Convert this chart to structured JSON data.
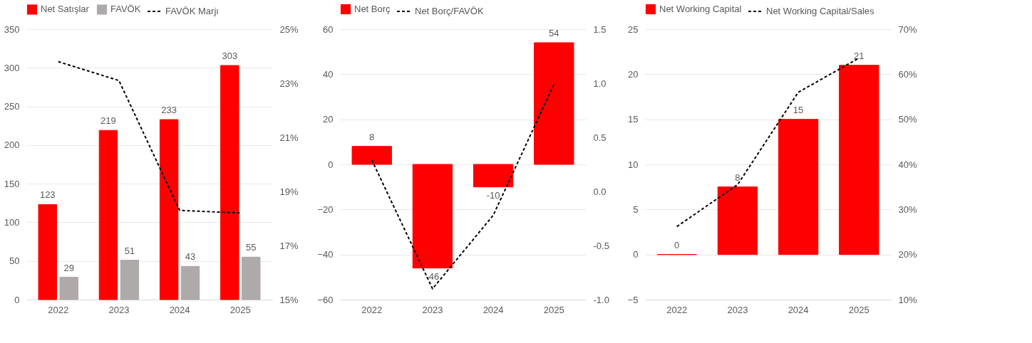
{
  "chart_data": [
    {
      "type": "bar",
      "categories": [
        "2022",
        "2023",
        "2024",
        "2025"
      ],
      "series": [
        {
          "name": "Net Satışlar",
          "color": "#ff0000",
          "values": [
            123,
            219,
            233,
            303
          ],
          "value_labels": [
            "123",
            "219",
            "233",
            "303"
          ]
        },
        {
          "name": "FAVÖK",
          "color": "#aeaaaa",
          "values": [
            29,
            51,
            43,
            55
          ],
          "value_labels": [
            "29",
            "51",
            "43",
            "55"
          ]
        },
        {
          "name": "FAVÖK Marjı",
          "color": "#000000",
          "type": "line",
          "axis": "y2",
          "line_style": "dashed",
          "values": [
            23.8,
            23.1,
            18.3,
            18.2
          ]
        }
      ],
      "ylim": [
        0,
        350
      ],
      "yticks": [
        0,
        50,
        100,
        150,
        200,
        250,
        300,
        350
      ],
      "y2lim": [
        15,
        25
      ],
      "y2ticks": [
        {
          "value": 15,
          "label": "15%"
        },
        {
          "value": 17,
          "label": "17%"
        },
        {
          "value": 19,
          "label": "19%"
        },
        {
          "value": 21,
          "label": "21%"
        },
        {
          "value": 23,
          "label": "23%"
        },
        {
          "value": 25,
          "label": "25%"
        }
      ],
      "grid": "y",
      "legend": "top"
    },
    {
      "type": "bar",
      "categories": [
        "2022",
        "2023",
        "2024",
        "2025"
      ],
      "series": [
        {
          "name": "Net Borç",
          "color": "#ff0000",
          "values": [
            8,
            -46,
            -10,
            54
          ],
          "value_labels": [
            "8",
            "-46",
            "-10",
            "54"
          ]
        },
        {
          "name": "Net Borç/FAVÖK",
          "color": "#000000",
          "type": "line",
          "axis": "y2",
          "line_style": "dashed",
          "values": [
            0.29,
            -0.9,
            -0.22,
            0.99
          ]
        }
      ],
      "ylim": [
        -60,
        60
      ],
      "yticks": [
        -60,
        -40,
        -20,
        0,
        20,
        40,
        60
      ],
      "y2lim": [
        -1,
        1.5
      ],
      "y2ticks": [
        {
          "value": -1,
          "label": "-1.0"
        },
        {
          "value": -0.5,
          "label": "-0.5"
        },
        {
          "value": 0,
          "label": "0.0"
        },
        {
          "value": 0.5,
          "label": "0.5"
        },
        {
          "value": 1,
          "label": "1.0"
        },
        {
          "value": 1.5,
          "label": "1.5"
        }
      ],
      "grid": "y",
      "legend": "top"
    },
    {
      "type": "bar",
      "categories": [
        "2022",
        "2023",
        "2024",
        "2025"
      ],
      "series": [
        {
          "name": "Net Working Capital",
          "color": "#ff0000",
          "values": [
            0,
            7.5,
            15,
            21
          ],
          "value_labels": [
            "0",
            "8",
            "15",
            "21"
          ]
        },
        {
          "name": "Net Working Capital/Sales",
          "color": "#000000",
          "type": "line",
          "axis": "y2",
          "line_style": "dashed",
          "values": [
            26.2,
            35.5,
            56,
            63.6
          ]
        }
      ],
      "ylim": [
        -5,
        25
      ],
      "yticks": [
        -5,
        0,
        5,
        10,
        15,
        20,
        25
      ],
      "y2lim": [
        10,
        70
      ],
      "y2ticks": [
        {
          "value": 10,
          "label": "10%"
        },
        {
          "value": 20,
          "label": "20%"
        },
        {
          "value": 30,
          "label": "30%"
        },
        {
          "value": 40,
          "label": "40%"
        },
        {
          "value": 50,
          "label": "50%"
        },
        {
          "value": 60,
          "label": "60%"
        },
        {
          "value": 70,
          "label": "70%"
        }
      ],
      "grid": "y",
      "legend": "top"
    }
  ]
}
